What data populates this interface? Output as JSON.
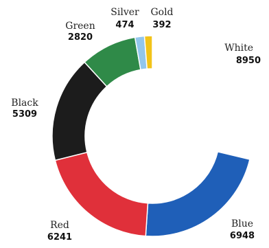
{
  "chart_data": {
    "type": "pie",
    "variant": "donut",
    "categories": [
      "White",
      "Blue",
      "Red",
      "Black",
      "Green",
      "Silver",
      "Gold"
    ],
    "values": [
      8950,
      6948,
      6241,
      5309,
      2820,
      474,
      392
    ],
    "colors": [
      "#ffffff",
      "#1f5fb8",
      "#e0303a",
      "#1c1c1c",
      "#2f8a48",
      "#92c6ec",
      "#f2c318"
    ],
    "labels": [
      {
        "name": "White",
        "value": "8950"
      },
      {
        "name": "Blue",
        "value": "6948"
      },
      {
        "name": "Red",
        "value": "6241"
      },
      {
        "name": "Black",
        "value": "5309"
      },
      {
        "name": "Green",
        "value": "2820"
      },
      {
        "name": "Silver",
        "value": "474"
      },
      {
        "name": "Gold",
        "value": "392"
      }
    ]
  }
}
